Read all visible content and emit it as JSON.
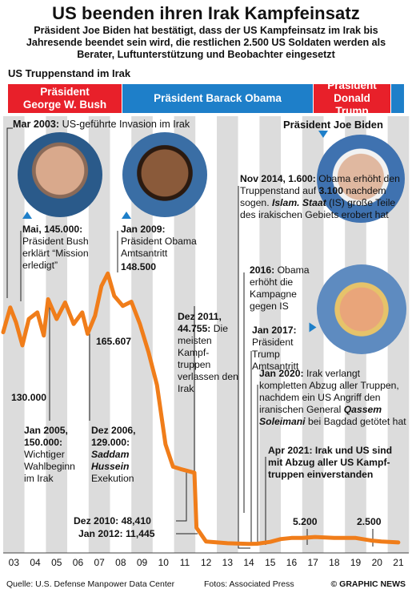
{
  "title": "US beenden ihren Irak Kampfeinsatz",
  "subtitle": "Präsident Joe Biden hat bestätigt, dass der US Kampfeinsatz im Irak bis Jahresende beendet sein wird, die restlichen 2.500 US Soldaten werden als Berater, Luftunterstützung und Beobachter eingesetzt",
  "series_label": "US Truppenstand im Irak",
  "presidents": {
    "bush": "Präsident George W. Bush",
    "obama": "Präsident Barack Obama",
    "trump": "Präsident Donald Trump",
    "biden": "Präsident Joe Biden"
  },
  "colors": {
    "bush": "#e8202a",
    "obama": "#1e7fc9",
    "trump": "#e8202a",
    "biden": "#1e7fc9",
    "line": "#f07d1a",
    "column": "#dcdcdc"
  },
  "annotations": {
    "mar2003": {
      "date": "Mar 2003:",
      "text": "US-geführte Invasion im Irak"
    },
    "mai2003": {
      "date": "Mai, 145.000:",
      "text": "Präsident Bush erklärt “Mission erledigt”"
    },
    "jan2009": {
      "date": "Jan 2009:",
      "text": "Präsident Obama Amtsantritt"
    },
    "v148500": "148.500",
    "v165607": "165.607",
    "v130000": "130.000",
    "jan2005": {
      "date": "Jan 2005, 150.000:",
      "text": "Wichtiger Wahlbeginn im Irak"
    },
    "dez2006": {
      "date": "Dez 2006, 129.000:",
      "name": "Saddam Hussein",
      "text": "Exekution"
    },
    "dez2011": {
      "date": "Dez 2011, 44.755:",
      "text": "Die meisten Kampf- truppen verlassen den Irak"
    },
    "nov2014": {
      "date": "Nov 2014, 1.600:",
      "text1": "Obama erhöht den Truppenstand auf",
      "bold": "3.100",
      "text2": "nachdem sogen.",
      "italic": "Islam. Staat",
      "text3": "(IS) große Teile des irakischen Gebiets erobert hat"
    },
    "y2016": {
      "date": "2016:",
      "text": "Obama erhöht die Kampagne gegen IS"
    },
    "jan2017": {
      "date": "Jan 2017:",
      "text": "Präsident Trump Amtsantritt"
    },
    "jan2020": {
      "date": "Jan 2020:",
      "text1": "Irak verlangt kompletten Abzug aller Truppen, nachdem ein US Angriff den iranischen General",
      "italic": "Qassem Soleimani",
      "text2": "bei Bagdad getötet hat"
    },
    "apr2021": "Apr 2021: Irak und US sind mit Abzug aller US Kampf- truppen einverstanden",
    "dez2010": "Dez 2010: 48,410",
    "jan2012": "Jan 2012: 11,445",
    "v5200": "5.200",
    "v2500": "2.500"
  },
  "footer": {
    "source": "Quelle: U.S. Defense Manpower Data Center",
    "photos": "Fotos: Associated Press",
    "credit": "© GRAPHIC NEWS"
  },
  "chart_data": {
    "type": "line",
    "xlabel": "",
    "ylabel": "",
    "ylim": [
      0,
      175000
    ],
    "categories": [
      "03",
      "04",
      "05",
      "06",
      "07",
      "08",
      "09",
      "10",
      "11",
      "12",
      "13",
      "14",
      "15",
      "16",
      "17",
      "18",
      "19",
      "20",
      "21"
    ],
    "series": [
      {
        "values": [
          [
            2003.0,
            130000
          ],
          [
            2003.33,
            145000
          ],
          [
            2003.6,
            136000
          ],
          [
            2003.9,
            122000
          ],
          [
            2004.2,
            138000
          ],
          [
            2004.6,
            142000
          ],
          [
            2004.9,
            128000
          ],
          [
            2005.1,
            150000
          ],
          [
            2005.5,
            138000
          ],
          [
            2005.9,
            148000
          ],
          [
            2006.3,
            135000
          ],
          [
            2006.7,
            142000
          ],
          [
            2006.95,
            129000
          ],
          [
            2007.3,
            140000
          ],
          [
            2007.6,
            158000
          ],
          [
            2007.9,
            165607
          ],
          [
            2008.2,
            152000
          ],
          [
            2008.6,
            146000
          ],
          [
            2009.0,
            148500
          ],
          [
            2009.4,
            135000
          ],
          [
            2009.8,
            118000
          ],
          [
            2010.2,
            98000
          ],
          [
            2010.6,
            62000
          ],
          [
            2010.95,
            48410
          ],
          [
            2011.3,
            47000
          ],
          [
            2011.6,
            46000
          ],
          [
            2011.95,
            44755
          ],
          [
            2012.05,
            11445
          ],
          [
            2012.5,
            3000
          ],
          [
            2013.5,
            2000
          ],
          [
            2014.5,
            1600
          ],
          [
            2014.9,
            1700
          ],
          [
            2015.5,
            2800
          ],
          [
            2016.0,
            4500
          ],
          [
            2016.5,
            5200
          ],
          [
            2017.0,
            5200
          ],
          [
            2017.6,
            5800
          ],
          [
            2018.5,
            5200
          ],
          [
            2019.5,
            5200
          ],
          [
            2020.3,
            3500
          ],
          [
            2020.7,
            3000
          ],
          [
            2021.5,
            2500
          ]
        ]
      }
    ]
  }
}
